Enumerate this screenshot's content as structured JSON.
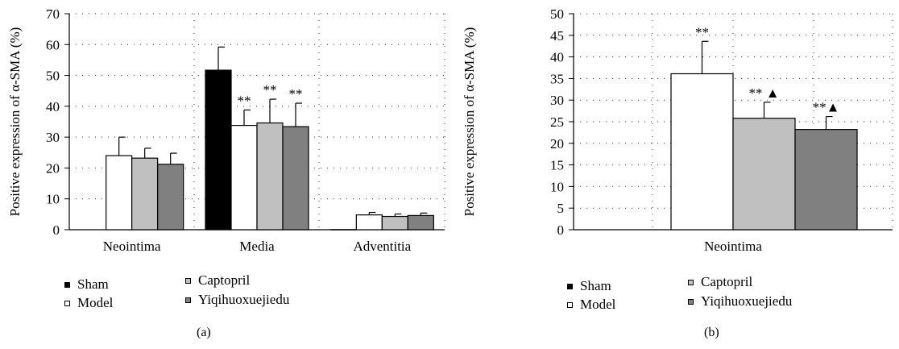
{
  "colors": {
    "Sham": "#000000",
    "Model": "#ffffff",
    "Captopril": "#c0c0c0",
    "Yiqihuoxuejiedu": "#808080"
  },
  "legend": {
    "sham": "Sham",
    "model": "Model",
    "captopril": "Captopril",
    "yiqi": "Yiqihuoxuejiedu"
  },
  "panel_labels": {
    "a": "(a)",
    "b": "(b)"
  },
  "chart_data": [
    {
      "type": "bar",
      "ylabel": "Positive expression of α-SMA (%)",
      "ylim": [
        0,
        70
      ],
      "yticks": [
        "0",
        "10",
        "20",
        "30",
        "40",
        "50",
        "60",
        "70"
      ],
      "categories": [
        "Neointima",
        "Media",
        "Adventitia"
      ],
      "grid": "dotted",
      "series": [
        {
          "name": "Sham",
          "values": [
            null,
            51.7,
            0
          ],
          "errors": [
            null,
            7.5,
            0
          ]
        },
        {
          "name": "Model",
          "values": [
            24,
            33.8,
            4.8
          ],
          "errors": [
            6,
            5,
            0.8
          ]
        },
        {
          "name": "Captopril",
          "values": [
            23.2,
            34.6,
            4.3
          ],
          "errors": [
            3.2,
            7.7,
            0.8
          ]
        },
        {
          "name": "Yiqihuoxuejiedu",
          "values": [
            21.2,
            33.4,
            4.6
          ],
          "errors": [
            3.6,
            7.6,
            0.8
          ]
        }
      ],
      "annotations": [
        {
          "series": "Model",
          "category": "Media",
          "text": "**"
        },
        {
          "series": "Captopril",
          "category": "Media",
          "text": "**"
        },
        {
          "series": "Yiqihuoxuejiedu",
          "category": "Media",
          "text": "**"
        }
      ]
    },
    {
      "type": "bar",
      "ylabel": "Positive expression of α-SMA (%)",
      "ylim": [
        0,
        50
      ],
      "yticks": [
        "0",
        "5",
        "10",
        "15",
        "20",
        "25",
        "30",
        "35",
        "40",
        "45",
        "50"
      ],
      "categories": [
        "Neointima"
      ],
      "grid": "dotted",
      "series": [
        {
          "name": "Sham",
          "values": [
            null
          ],
          "errors": [
            null
          ]
        },
        {
          "name": "Model",
          "values": [
            36.1
          ],
          "errors": [
            7.5
          ]
        },
        {
          "name": "Captopril",
          "values": [
            25.8
          ],
          "errors": [
            3.7
          ]
        },
        {
          "name": "Yiqihuoxuejiedu",
          "values": [
            23.2
          ],
          "errors": [
            3
          ]
        }
      ],
      "annotations": [
        {
          "series": "Model",
          "category": "Neointima",
          "text": "**"
        },
        {
          "series": "Captopril",
          "category": "Neointima",
          "text": "** ▲"
        },
        {
          "series": "Yiqihuoxuejiedu",
          "category": "Neointima",
          "text": "**▲"
        }
      ]
    }
  ]
}
